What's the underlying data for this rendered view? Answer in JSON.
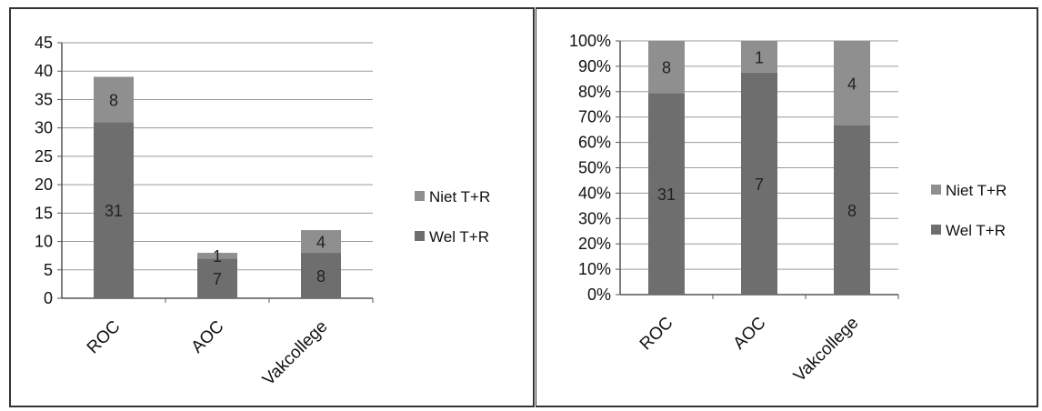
{
  "chart_data": [
    {
      "type": "bar",
      "stacked": true,
      "categories": [
        "ROC",
        "AOC",
        "Vakcollege"
      ],
      "series": [
        {
          "name": "Wel T+R",
          "values": [
            31,
            7,
            8
          ],
          "color": "#6e6e6e"
        },
        {
          "name": "Niet T+R",
          "values": [
            8,
            1,
            4
          ],
          "color": "#8f8f8f"
        }
      ],
      "ylim": [
        0,
        45
      ],
      "ytick_step": 5,
      "legend_order": [
        "Niet T+R",
        "Wel T+R"
      ],
      "legend_position": "right",
      "grid": true
    },
    {
      "type": "bar",
      "stacked": true,
      "percent": true,
      "categories": [
        "ROC",
        "AOC",
        "Vakcollege"
      ],
      "series": [
        {
          "name": "Wel T+R",
          "values": [
            31,
            7,
            8
          ],
          "color": "#6e6e6e"
        },
        {
          "name": "Niet T+R",
          "values": [
            8,
            1,
            4
          ],
          "color": "#8f8f8f"
        }
      ],
      "ylim": [
        0,
        100
      ],
      "ytick_step": 10,
      "ytick_suffix": "%",
      "legend_order": [
        "Niet T+R",
        "Wel T+R"
      ],
      "legend_position": "right",
      "grid": true
    }
  ]
}
